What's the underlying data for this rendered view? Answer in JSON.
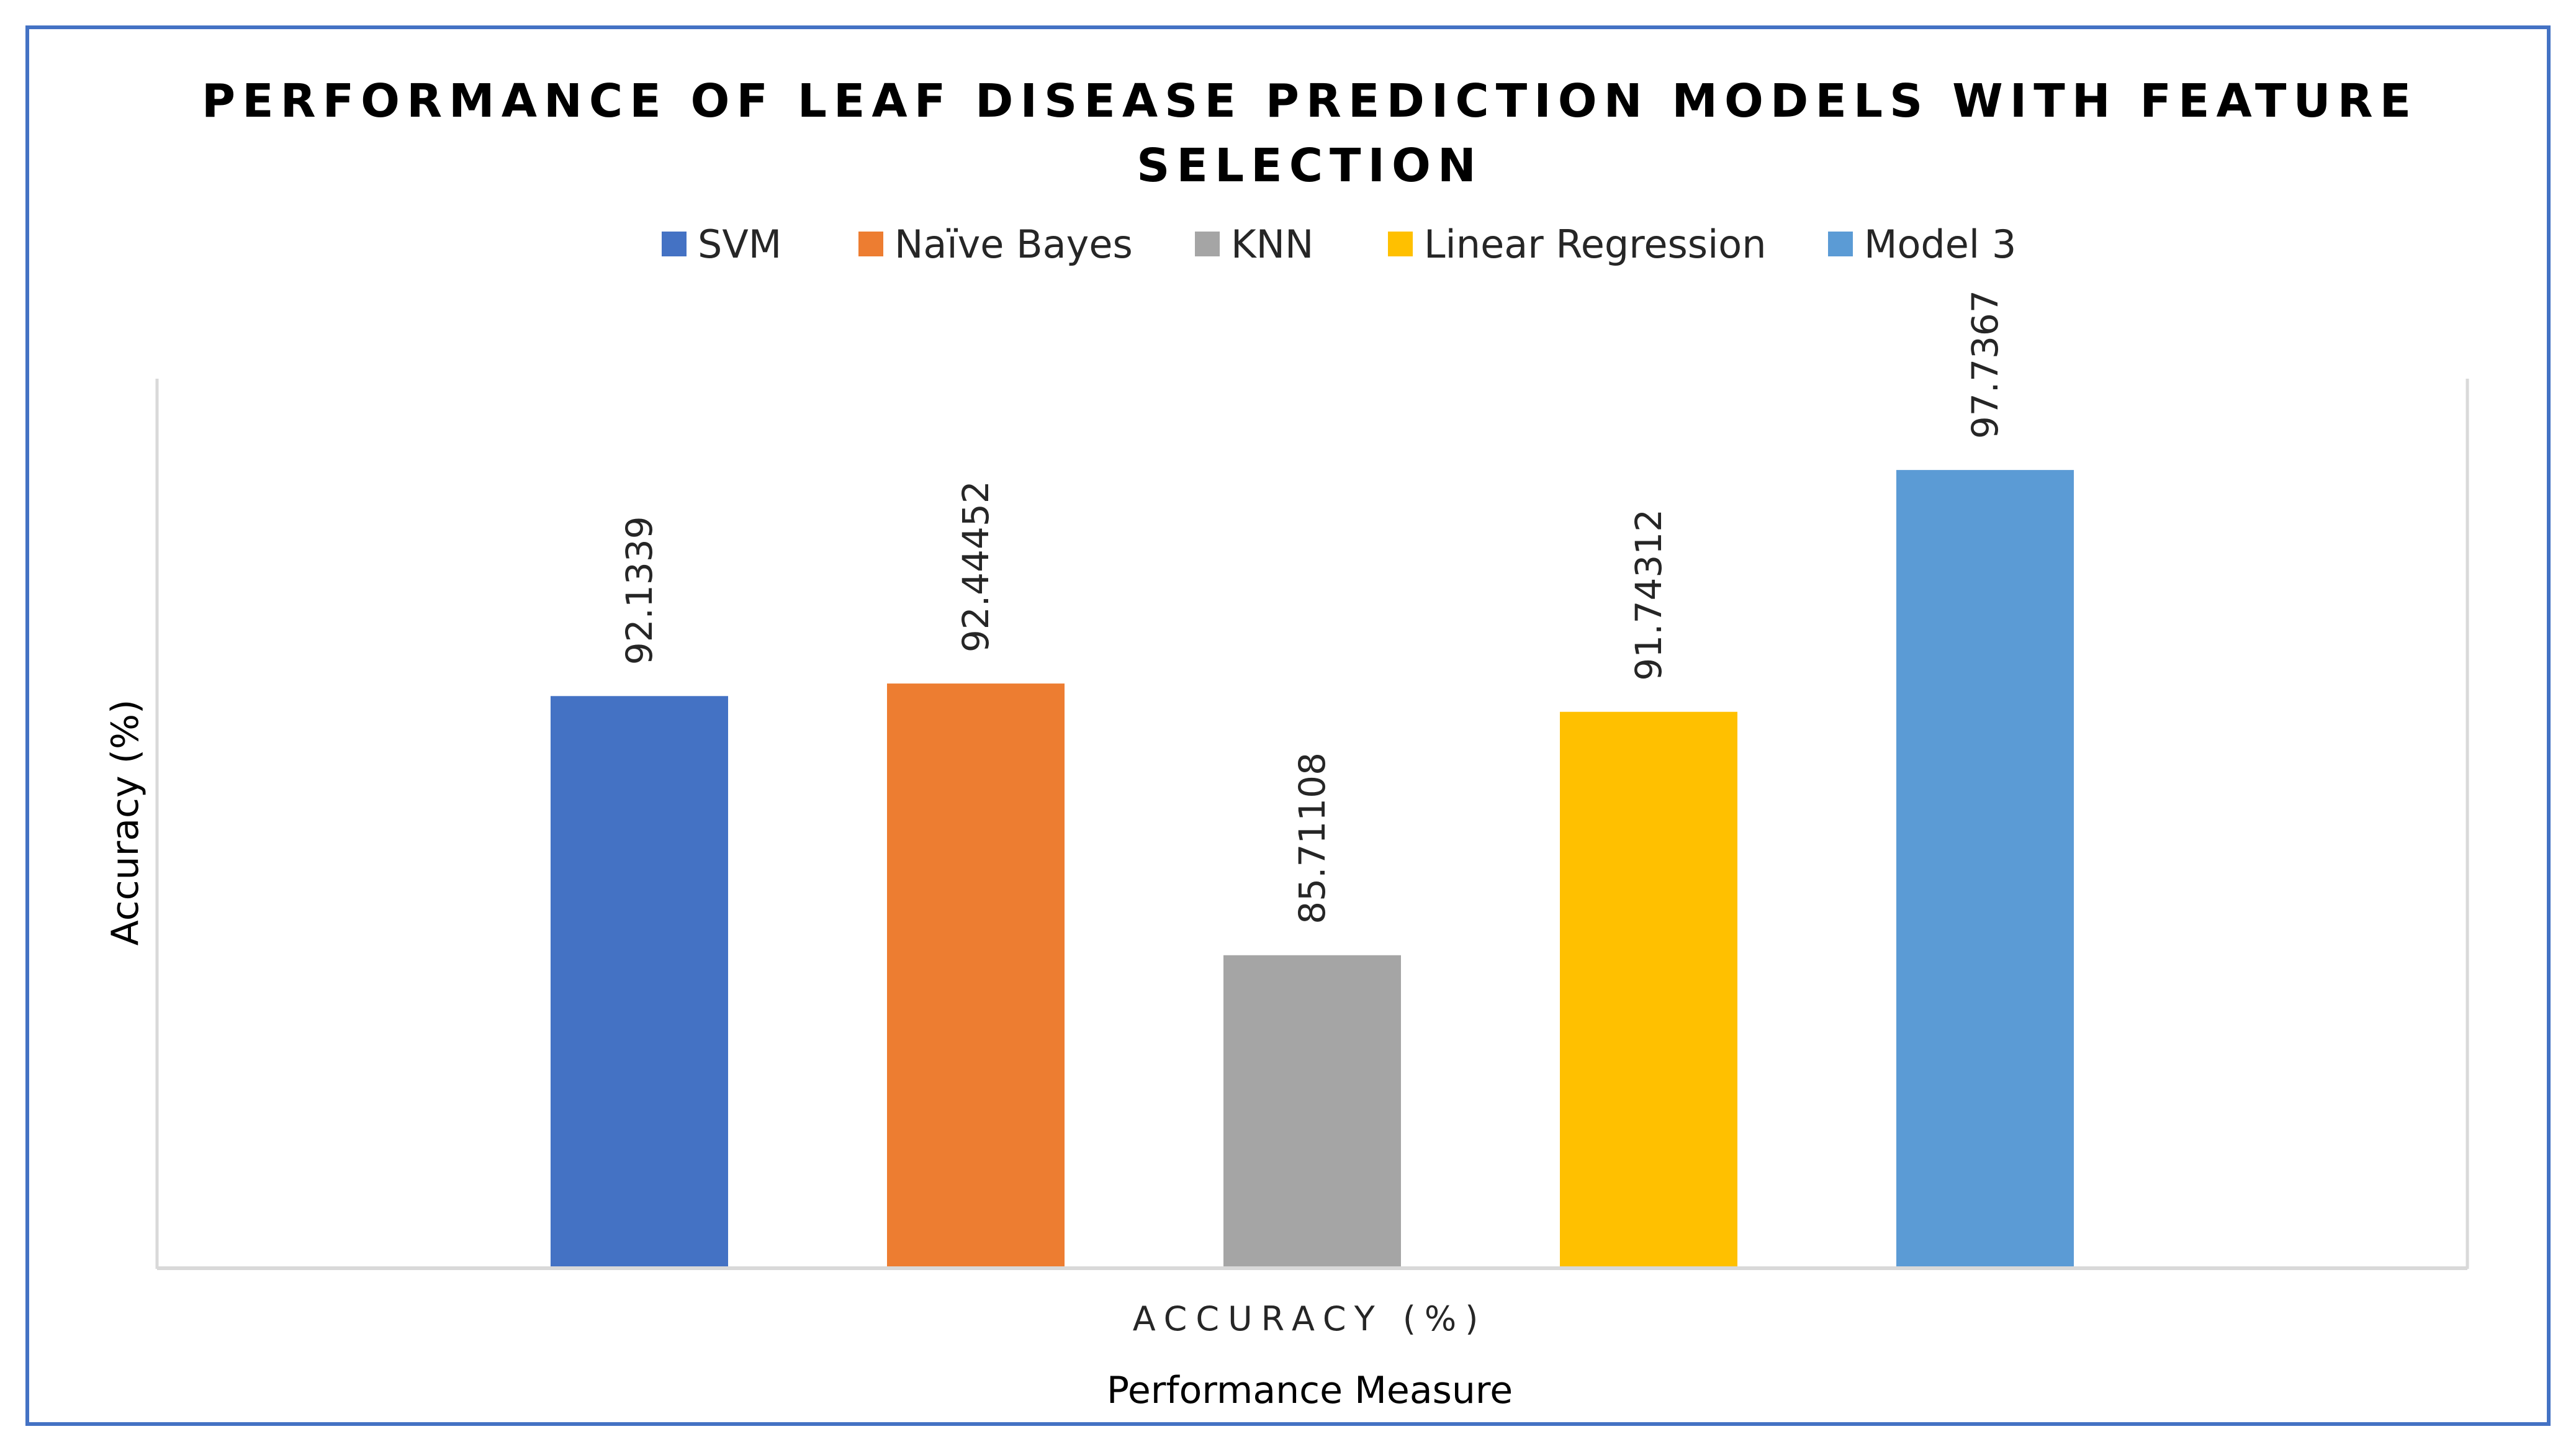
{
  "chart_data": {
    "type": "bar",
    "title_line1": "PERFORMANCE OF LEAF DISEASE PREDICTION MODELS WITH FEATURE",
    "title_line2": "SELECTION",
    "categories": [
      "ACCURACY (%)"
    ],
    "series": [
      {
        "name": "SVM",
        "values": [
          92.1339
        ],
        "label": "92.1339",
        "color": "#4472C4"
      },
      {
        "name": "Naïve Bayes",
        "values": [
          92.44452
        ],
        "label": "92.44452",
        "color": "#ED7D31"
      },
      {
        "name": "KNN",
        "values": [
          85.71108
        ],
        "label": "85.71108",
        "color": "#A5A5A5"
      },
      {
        "name": "Linear Regression",
        "values": [
          91.74312
        ],
        "label": "91.74312",
        "color": "#FFC000"
      },
      {
        "name": "Model 3",
        "values": [
          97.7367
        ],
        "label": "97.7367",
        "color": "#5B9BD5"
      }
    ],
    "xlabel": "Performance Measure",
    "ylabel": "Accuracy (%)",
    "ylim": [
      78,
      100
    ],
    "grid": false,
    "legend_position": "top"
  },
  "frame_color": "#4472C4"
}
